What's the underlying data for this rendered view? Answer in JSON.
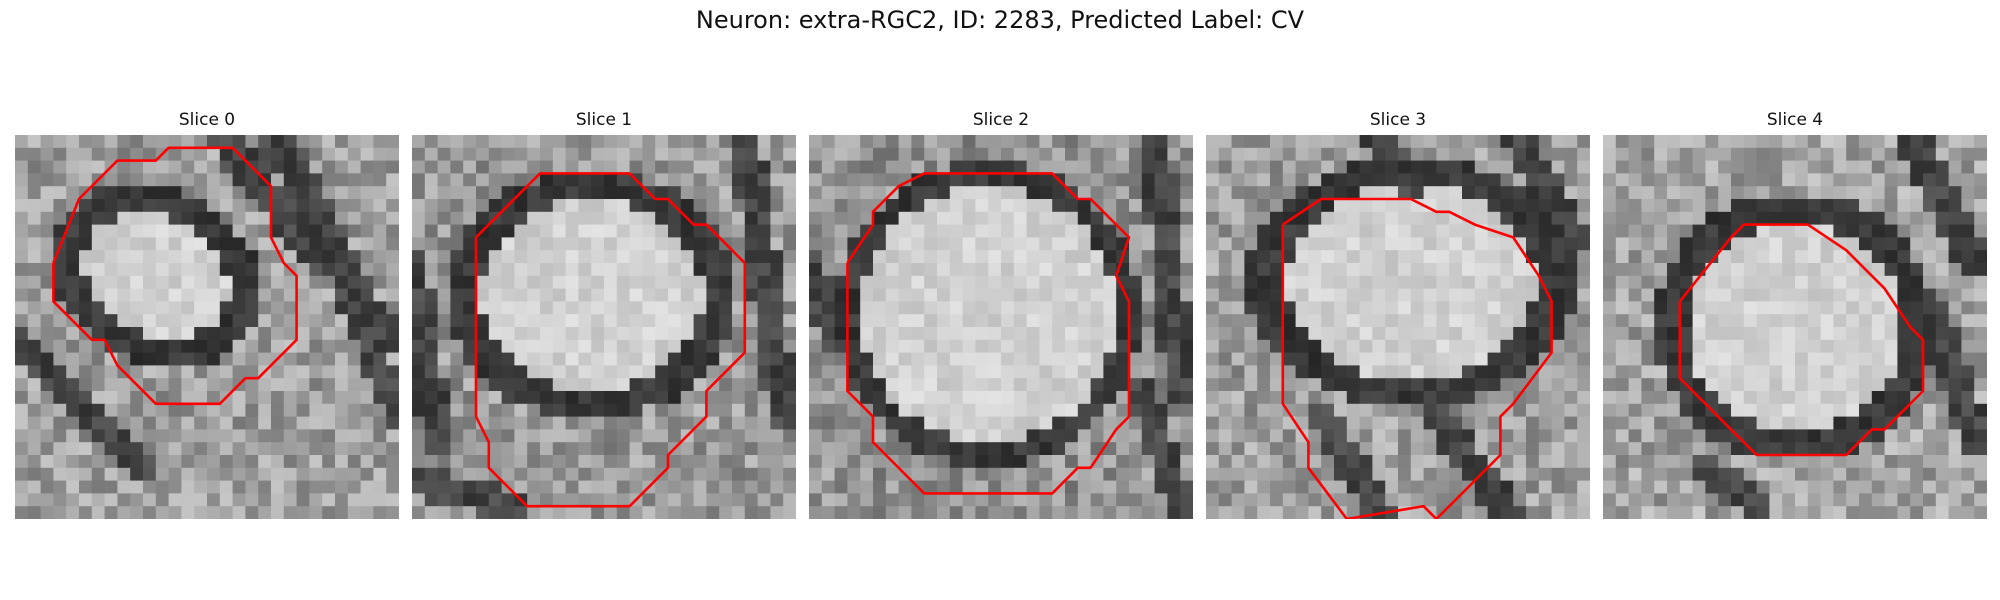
{
  "figure": {
    "title": "Neuron: extra-RGC2, ID: 2283, Predicted Label: CV"
  },
  "panels": [
    {
      "title": "Slice 0"
    },
    {
      "title": "Slice 1"
    },
    {
      "title": "Slice 2"
    },
    {
      "title": "Slice 3"
    },
    {
      "title": "Slice 4"
    }
  ],
  "colors": {
    "contour": "#ff0000",
    "background": "#ffffff"
  }
}
